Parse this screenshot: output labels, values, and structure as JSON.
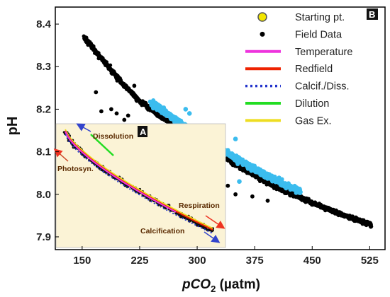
{
  "chart_data": {
    "type": "scatter",
    "xlabel_prefix": "pCO",
    "xlabel_sub": "2",
    "xlabel_unit": " (µatm)",
    "ylabel": "pH",
    "x_ticks": [
      "150",
      "225",
      "300",
      "375",
      "450",
      "525"
    ],
    "y_ticks": [
      "8.4",
      "8.3",
      "8.2",
      "8.1",
      "8.0",
      "7.9"
    ],
    "xlim": [
      115,
      545
    ],
    "ylim": [
      7.87,
      8.44
    ],
    "panel_main": "B",
    "panel_inset": "A",
    "legend": [
      {
        "label": "Starting pt.",
        "kind": "circle",
        "color": "#f2e600"
      },
      {
        "label": "Field Data",
        "kind": "dot",
        "color": "#000000"
      },
      {
        "label": "Temperature",
        "kind": "line",
        "color": "#ee33dd"
      },
      {
        "label": "Redfield",
        "kind": "line",
        "color": "#ee2200"
      },
      {
        "label": "Calcif./Diss.",
        "kind": "dotted",
        "color": "#2233cc"
      },
      {
        "label": "Dilution",
        "kind": "line",
        "color": "#22dd22"
      },
      {
        "label": "Gas Ex.",
        "kind": "line",
        "color": "#eedd22"
      }
    ],
    "series": [
      {
        "name": "Field Data",
        "color": "#000000",
        "trend": [
          [
            152,
            8.37
          ],
          [
            175,
            8.32
          ],
          [
            200,
            8.265
          ],
          [
            225,
            8.22
          ],
          [
            250,
            8.185
          ],
          [
            275,
            8.155
          ],
          [
            300,
            8.125
          ],
          [
            325,
            8.1
          ],
          [
            350,
            8.07
          ],
          [
            375,
            8.045
          ],
          [
            400,
            8.02
          ],
          [
            425,
            8.0
          ],
          [
            450,
            7.98
          ],
          [
            475,
            7.962
          ],
          [
            500,
            7.945
          ],
          [
            528,
            7.928
          ]
        ],
        "outliers": [
          [
            168,
            8.24
          ],
          [
            175,
            8.195
          ],
          [
            188,
            8.2
          ],
          [
            195,
            8.19
          ],
          [
            205,
            8.175
          ],
          [
            210,
            8.185
          ],
          [
            218,
            8.255
          ],
          [
            228,
            8.14
          ],
          [
            238,
            8.13
          ],
          [
            260,
            8.11
          ],
          [
            272,
            8.09
          ],
          [
            280,
            8.125
          ],
          [
            245,
            8.08
          ],
          [
            290,
            8.06
          ],
          [
            300,
            8.055
          ],
          [
            315,
            8.06
          ],
          [
            340,
            8.02
          ],
          [
            350,
            8.0
          ],
          [
            372,
            7.995
          ],
          [
            392,
            7.985
          ]
        ]
      },
      {
        "name": "",
        "color": "#3bbcee",
        "trend": [
          [
            240,
            8.215
          ],
          [
            260,
            8.19
          ],
          [
            280,
            8.165
          ],
          [
            300,
            8.14
          ],
          [
            320,
            8.115
          ],
          [
            340,
            8.095
          ],
          [
            360,
            8.075
          ],
          [
            380,
            8.055
          ],
          [
            400,
            8.035
          ],
          [
            420,
            8.02
          ],
          [
            435,
            8.005
          ]
        ],
        "outliers": [
          [
            285,
            8.2
          ],
          [
            290,
            8.19
          ],
          [
            268,
            8.18
          ],
          [
            330,
            8.13
          ],
          [
            350,
            8.13
          ],
          [
            312,
            8.07
          ],
          [
            355,
            8.03
          ]
        ]
      }
    ],
    "inset": {
      "labels": [
        "Dissolution",
        "Photosyn.",
        "Respiration",
        "Calcification"
      ]
    }
  }
}
